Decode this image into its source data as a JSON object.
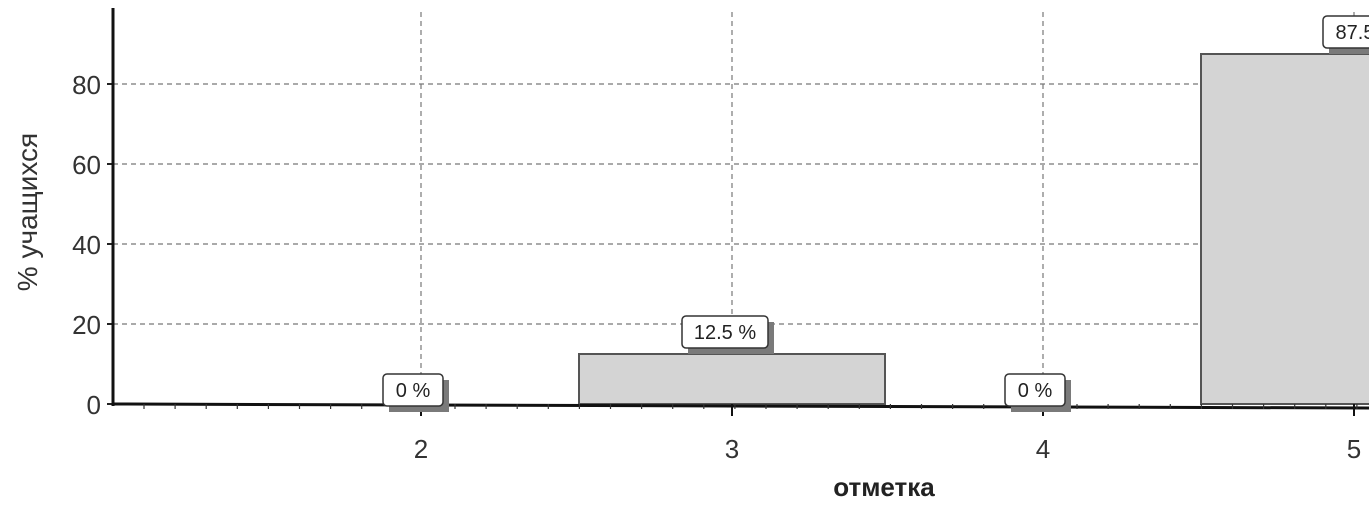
{
  "chart_data": {
    "type": "bar",
    "categories": [
      "2",
      "3",
      "4",
      "5"
    ],
    "values": [
      0,
      12.5,
      0,
      87.5
    ],
    "data_labels": [
      "0 %",
      "12.5 %",
      "0 %",
      "87.5"
    ],
    "title": "",
    "xlabel": "отметка",
    "ylabel": "% учащихся",
    "ylim": [
      0,
      100
    ],
    "yticks": [
      0,
      20,
      40,
      60,
      80
    ],
    "grid": true,
    "bar_color": "#d4d4d4",
    "bar_edge_color": "#555555",
    "label_shadow_color": "#7a7a7a"
  }
}
